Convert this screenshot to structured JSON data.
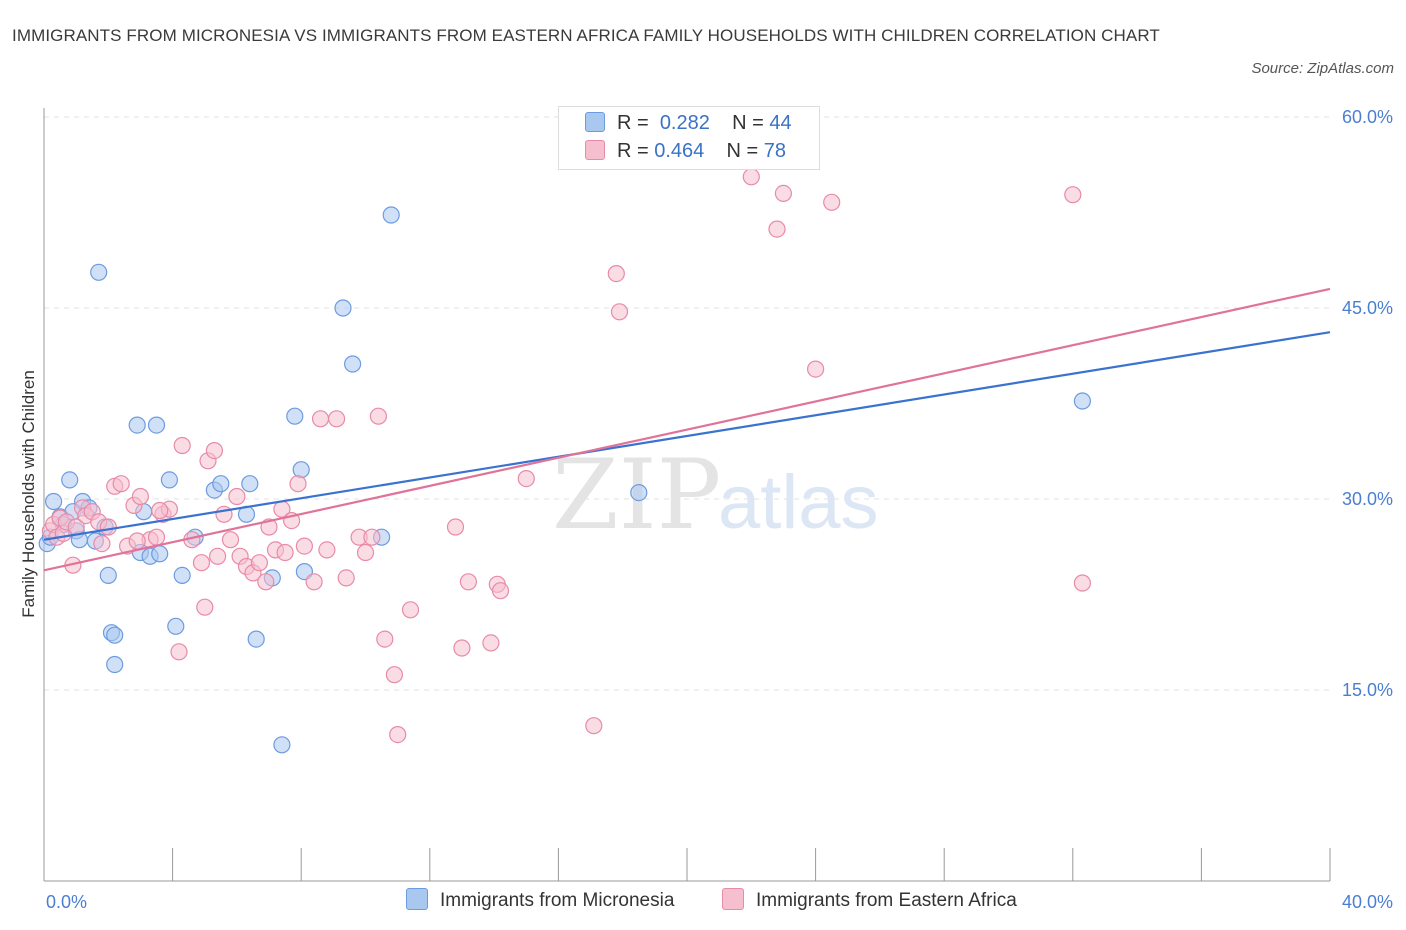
{
  "title": "IMMIGRANTS FROM MICRONESIA VS IMMIGRANTS FROM EASTERN AFRICA FAMILY HOUSEHOLDS WITH CHILDREN CORRELATION CHART",
  "source": "Source: ZipAtlas.com",
  "watermark": {
    "zip": "ZIP",
    "atlas": "atlas"
  },
  "legend": {
    "r_label": "R =",
    "n_label": "N =",
    "rows": [
      {
        "r": "0.282",
        "n": "44",
        "color": "#a9c8f0",
        "border": "#6d9be0"
      },
      {
        "r": "0.464",
        "n": "78",
        "color": "#f6bfd0",
        "border": "#e88aa8"
      }
    ]
  },
  "chart_data": {
    "type": "scatter",
    "title": "IMMIGRANTS FROM MICRONESIA VS IMMIGRANTS FROM EASTERN AFRICA FAMILY HOUSEHOLDS WITH CHILDREN CORRELATION CHART",
    "xlabel": "",
    "ylabel": "Family Households with Children",
    "xlim": [
      0,
      40
    ],
    "ylim": [
      0,
      60
    ],
    "x_tick_labels": [
      "0.0%",
      "40.0%"
    ],
    "y_ticks": [
      15,
      30,
      45,
      60
    ],
    "y_tick_labels": [
      "15.0%",
      "30.0%",
      "45.0%",
      "60.0%"
    ],
    "grid": true,
    "legend_position": "top-center",
    "series": [
      {
        "name": "Immigrants from Micronesia",
        "color": "#6d9be0",
        "fill": "#a9c8f0",
        "trend": {
          "x": [
            0,
            40
          ],
          "y": [
            26.8,
            43.1
          ],
          "color": "#3a72d0"
        },
        "points": [
          [
            0.1,
            26.5
          ],
          [
            0.2,
            27.0
          ],
          [
            0.3,
            29.8
          ],
          [
            0.5,
            28.6
          ],
          [
            0.6,
            28.0
          ],
          [
            0.8,
            31.5
          ],
          [
            1.0,
            27.5
          ],
          [
            1.1,
            26.8
          ],
          [
            1.2,
            29.8
          ],
          [
            1.4,
            29.3
          ],
          [
            1.6,
            26.7
          ],
          [
            1.7,
            47.8
          ],
          [
            1.9,
            27.8
          ],
          [
            2.0,
            24.0
          ],
          [
            2.1,
            19.5
          ],
          [
            2.2,
            19.3
          ],
          [
            2.2,
            17.0
          ],
          [
            2.9,
            35.8
          ],
          [
            3.0,
            25.8
          ],
          [
            3.1,
            29.0
          ],
          [
            3.3,
            25.5
          ],
          [
            3.5,
            35.8
          ],
          [
            3.6,
            25.7
          ],
          [
            3.9,
            31.5
          ],
          [
            4.1,
            20.0
          ],
          [
            4.3,
            24.0
          ],
          [
            4.7,
            27.0
          ],
          [
            5.3,
            30.7
          ],
          [
            5.5,
            31.2
          ],
          [
            6.3,
            28.8
          ],
          [
            6.4,
            31.2
          ],
          [
            6.6,
            19.0
          ],
          [
            7.1,
            23.8
          ],
          [
            7.4,
            10.7
          ],
          [
            7.8,
            36.5
          ],
          [
            8.0,
            32.3
          ],
          [
            8.1,
            24.3
          ],
          [
            9.3,
            45.0
          ],
          [
            9.6,
            40.6
          ],
          [
            10.5,
            27.0
          ],
          [
            10.8,
            52.3
          ],
          [
            18.5,
            30.5
          ],
          [
            32.3,
            37.7
          ],
          [
            0.9,
            29.0
          ]
        ]
      },
      {
        "name": "Immigrants from Eastern Africa",
        "color": "#e88aa8",
        "fill": "#f6bfd0",
        "trend": {
          "x": [
            0,
            40
          ],
          "y": [
            24.4,
            46.5
          ],
          "color": "#e0739a"
        },
        "points": [
          [
            0.2,
            27.5
          ],
          [
            0.3,
            28.0
          ],
          [
            0.4,
            27.0
          ],
          [
            0.5,
            28.5
          ],
          [
            0.6,
            27.3
          ],
          [
            0.7,
            28.2
          ],
          [
            0.9,
            24.8
          ],
          [
            1.0,
            27.8
          ],
          [
            1.2,
            29.3
          ],
          [
            1.3,
            28.7
          ],
          [
            1.5,
            29.0
          ],
          [
            1.7,
            28.2
          ],
          [
            1.8,
            26.5
          ],
          [
            2.0,
            27.8
          ],
          [
            2.2,
            31.0
          ],
          [
            2.4,
            31.2
          ],
          [
            2.6,
            26.3
          ],
          [
            2.8,
            29.5
          ],
          [
            3.0,
            30.2
          ],
          [
            3.3,
            26.8
          ],
          [
            3.5,
            27.0
          ],
          [
            3.7,
            28.8
          ],
          [
            3.9,
            29.2
          ],
          [
            4.2,
            18.0
          ],
          [
            4.3,
            34.2
          ],
          [
            4.6,
            26.8
          ],
          [
            4.9,
            25.0
          ],
          [
            5.0,
            21.5
          ],
          [
            5.1,
            33.0
          ],
          [
            5.3,
            33.8
          ],
          [
            5.4,
            25.5
          ],
          [
            5.6,
            28.8
          ],
          [
            5.8,
            26.8
          ],
          [
            6.0,
            30.2
          ],
          [
            6.1,
            25.5
          ],
          [
            6.3,
            24.7
          ],
          [
            6.5,
            24.2
          ],
          [
            6.7,
            25.0
          ],
          [
            6.9,
            23.5
          ],
          [
            7.0,
            27.8
          ],
          [
            7.2,
            26.0
          ],
          [
            7.4,
            29.2
          ],
          [
            7.5,
            25.8
          ],
          [
            7.7,
            28.3
          ],
          [
            7.9,
            31.2
          ],
          [
            8.1,
            26.3
          ],
          [
            8.4,
            23.5
          ],
          [
            8.6,
            36.3
          ],
          [
            8.8,
            26.0
          ],
          [
            9.1,
            36.3
          ],
          [
            9.4,
            23.8
          ],
          [
            9.8,
            27.0
          ],
          [
            10.0,
            25.8
          ],
          [
            10.2,
            27.0
          ],
          [
            10.4,
            36.5
          ],
          [
            10.6,
            19.0
          ],
          [
            10.9,
            16.2
          ],
          [
            11.0,
            11.5
          ],
          [
            11.4,
            21.3
          ],
          [
            12.8,
            27.8
          ],
          [
            13.0,
            18.3
          ],
          [
            13.2,
            23.5
          ],
          [
            13.9,
            18.7
          ],
          [
            14.1,
            23.3
          ],
          [
            14.2,
            22.8
          ],
          [
            15.0,
            31.6
          ],
          [
            17.1,
            12.2
          ],
          [
            17.8,
            47.7
          ],
          [
            17.9,
            44.7
          ],
          [
            22.0,
            55.3
          ],
          [
            22.8,
            51.2
          ],
          [
            23.0,
            54.0
          ],
          [
            24.0,
            40.2
          ],
          [
            24.5,
            53.3
          ],
          [
            32.0,
            53.9
          ],
          [
            32.3,
            23.4
          ],
          [
            2.9,
            26.7
          ],
          [
            3.6,
            29.1
          ]
        ]
      }
    ]
  }
}
